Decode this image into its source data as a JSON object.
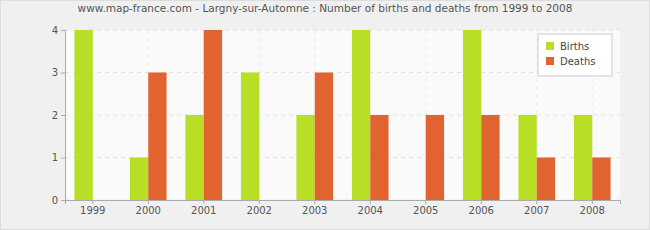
{
  "chart_data": {
    "type": "bar",
    "title": "www.map-france.com - Largny-sur-Automne : Number of births and deaths from 1999 to 2008",
    "categories": [
      "1999",
      "2000",
      "2001",
      "2002",
      "2003",
      "2004",
      "2005",
      "2006",
      "2007",
      "2008"
    ],
    "series": [
      {
        "name": "Births",
        "color": "#b8de26",
        "values": [
          4,
          1,
          2,
          3,
          2,
          4,
          0,
          4,
          2,
          2
        ]
      },
      {
        "name": "Deaths",
        "color": "#e06330",
        "values": [
          0,
          3,
          4,
          0,
          3,
          2,
          2,
          2,
          1,
          1
        ]
      }
    ],
    "ylim": [
      0,
      4
    ],
    "yticks": [
      0,
      1,
      2,
      3,
      4
    ],
    "grid": true,
    "legend": "top-right"
  }
}
